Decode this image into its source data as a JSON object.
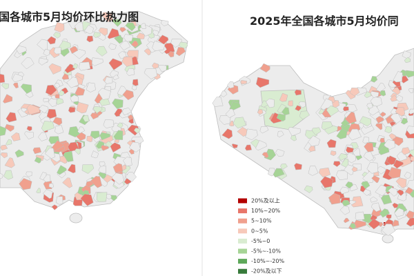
{
  "panels": [
    {
      "title": "国各城市5月均价环比热力图"
    },
    {
      "title": "2025年全国各城市5月均价同",
      "legend": [
        {
          "label": "20%及以上",
          "color": "#b30000"
        },
        {
          "label": "10%~20%",
          "color": "#e8766a"
        },
        {
          "label": "5~10%",
          "color": "#f0a08e"
        },
        {
          "label": "0~5%",
          "color": "#f7c9ba"
        },
        {
          "label": "-5%~0",
          "color": "#d9ecd1"
        },
        {
          "label": "-5%~-10%",
          "color": "#a6d496"
        },
        {
          "label": "-10%~-20%",
          "color": "#5ea85a"
        },
        {
          "label": "-20%及以下",
          "color": "#377a3a"
        }
      ]
    }
  ]
}
